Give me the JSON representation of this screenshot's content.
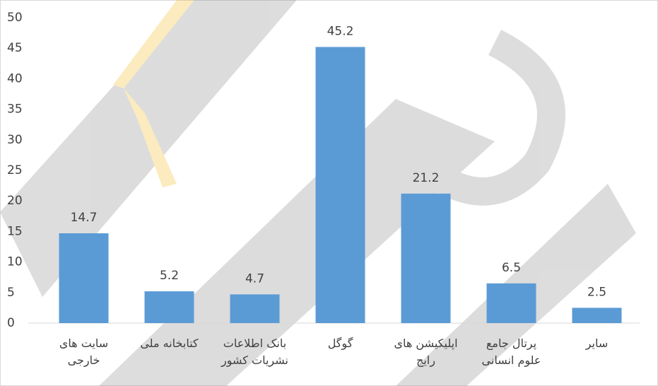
{
  "chart_data": {
    "type": "bar",
    "categories": [
      "سایت های\nخارجی",
      "کتابخانه ملی",
      "بانک اطلاعات\nنشریات کشور",
      "گوگل",
      "اپلیکیشن های\nرایج",
      "پرتال جامع\nعلوم انسانی",
      "سایر"
    ],
    "values": [
      14.7,
      5.2,
      4.7,
      45.2,
      21.2,
      6.5,
      2.5
    ],
    "color": "#5b9bd5",
    "ylim": [
      0,
      50
    ],
    "yticks": [
      0,
      5,
      10,
      15,
      20,
      25,
      30,
      35,
      40,
      45,
      50
    ],
    "grid": false
  }
}
